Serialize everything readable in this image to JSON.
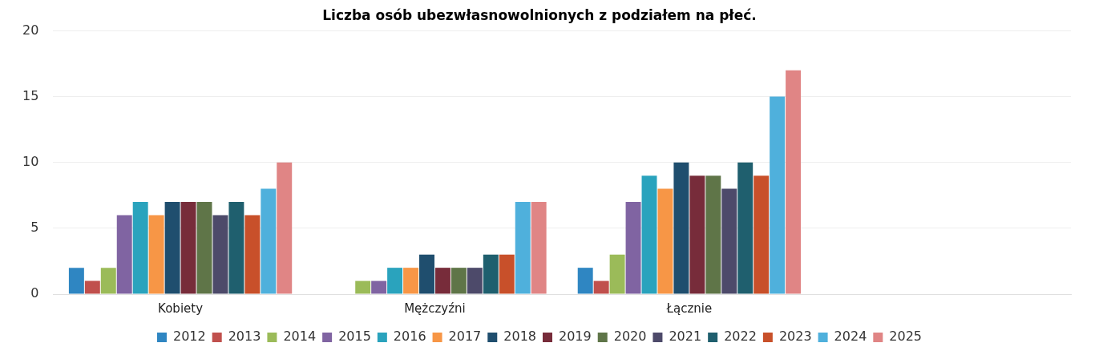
{
  "chart_data": {
    "type": "bar",
    "title": "Liczba osób ubezwłasnowolnionych z podziałem na płeć.",
    "categories": [
      "Kobiety",
      "Mężczyźni",
      "Łącznie",
      null
    ],
    "series": [
      {
        "name": "2012",
        "color": "#2f86c2",
        "values": [
          2,
          0,
          2,
          null
        ]
      },
      {
        "name": "2013",
        "color": "#c0504d",
        "values": [
          1,
          0,
          1,
          null
        ]
      },
      {
        "name": "2014",
        "color": "#9bbb59",
        "values": [
          2,
          1,
          3,
          null
        ]
      },
      {
        "name": "2015",
        "color": "#8064a2",
        "values": [
          6,
          1,
          7,
          null
        ]
      },
      {
        "name": "2016",
        "color": "#2aa3bd",
        "values": [
          7,
          2,
          9,
          null
        ]
      },
      {
        "name": "2017",
        "color": "#f79646",
        "values": [
          6,
          2,
          8,
          null
        ]
      },
      {
        "name": "2018",
        "color": "#1f4e6e",
        "values": [
          7,
          3,
          10,
          null
        ]
      },
      {
        "name": "2019",
        "color": "#772c3a",
        "values": [
          7,
          2,
          9,
          null
        ]
      },
      {
        "name": "2020",
        "color": "#5f7548",
        "values": [
          7,
          2,
          9,
          null
        ]
      },
      {
        "name": "2021",
        "color": "#4d4a6a",
        "values": [
          6,
          2,
          8,
          null
        ]
      },
      {
        "name": "2022",
        "color": "#1f5f6e",
        "values": [
          7,
          3,
          10,
          null
        ]
      },
      {
        "name": "2023",
        "color": "#c8502a",
        "values": [
          6,
          3,
          9,
          null
        ]
      },
      {
        "name": "2024",
        "color": "#4fb0dc",
        "values": [
          8,
          7,
          15,
          null
        ]
      },
      {
        "name": "2025",
        "color": "#e08585",
        "values": [
          10,
          7,
          17,
          null
        ]
      }
    ],
    "ylim": [
      0,
      20
    ],
    "yticks": [
      0,
      5,
      10,
      15,
      20
    ],
    "grid": "y",
    "legend": "bottom"
  }
}
